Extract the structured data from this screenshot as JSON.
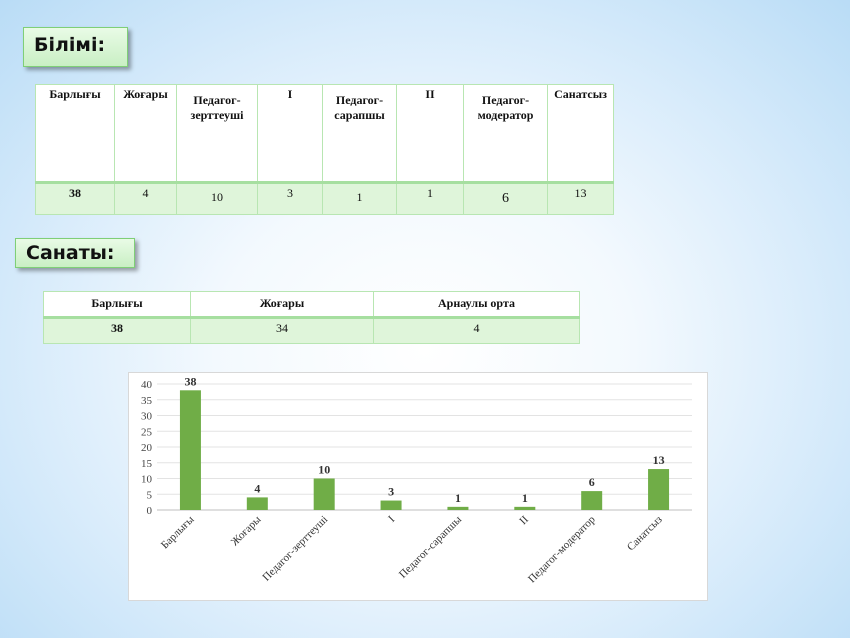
{
  "education_section": {
    "title": "Білімі:",
    "headers": [
      "Барлығы",
      "Жоғары",
      "Педагог-зерттеуші",
      "I",
      "Педагог-сарапшы",
      "II",
      "Педагог-модератор",
      "Санатсыз"
    ],
    "values": [
      "38",
      "4",
      "10",
      "3",
      "1",
      "1",
      "6",
      "13"
    ]
  },
  "category_section": {
    "title": "Санаты:",
    "headers": [
      "Барлығы",
      "Жоғары",
      "Арнаулы орта"
    ],
    "values": [
      "38",
      "34",
      "4"
    ]
  },
  "chart_data": {
    "type": "bar",
    "categories": [
      "Барлығы",
      "Жоғары",
      "Педагог-зерттеуші",
      "I",
      "Педагог-сарапшы",
      "II",
      "Педагог-модератор",
      "Санатсыз"
    ],
    "values": [
      38,
      4,
      10,
      3,
      1,
      1,
      6,
      13
    ],
    "title": "",
    "xlabel": "",
    "ylabel": "",
    "ylim": [
      0,
      40
    ],
    "yticks": [
      0,
      5,
      10,
      15,
      20,
      25,
      30,
      35,
      40
    ],
    "grid": true,
    "bar_color": "#70ad47"
  }
}
